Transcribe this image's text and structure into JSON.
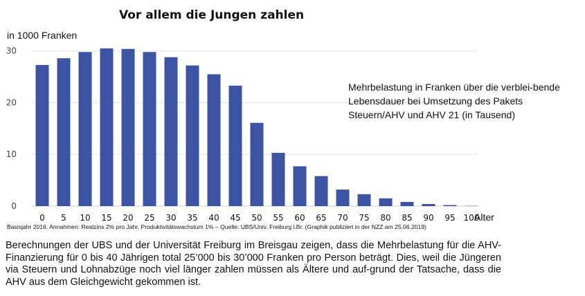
{
  "chart_data": {
    "type": "bar",
    "title": "Vor allem die Jungen zahlen",
    "ylabel": "in 1000 Franken",
    "xlabel": "Alter",
    "categories": [
      "0",
      "5",
      "10",
      "15",
      "20",
      "25",
      "30",
      "35",
      "40",
      "45",
      "50",
      "55",
      "60",
      "65",
      "70",
      "75",
      "80",
      "85",
      "90",
      "95",
      "100"
    ],
    "values": [
      27.3,
      28.6,
      29.8,
      30.5,
      30.4,
      29.8,
      28.8,
      27.2,
      25.5,
      23.3,
      16.1,
      10.3,
      7.7,
      5.8,
      3.2,
      2.3,
      1.5,
      0.8,
      0.4,
      0.2,
      0.05
    ],
    "ylim": [
      0,
      30.5
    ],
    "yticks": [
      "0",
      "10",
      "20",
      "30"
    ],
    "grid": true,
    "annotation": "Mehrbelastung in Franken über die verblei-bende Lebensdauer bei Umsetzung des Pakets Steuern/AHV und AHV 21 (in Tausend)",
    "colors": {
      "bar": "#3d53a4",
      "grid": "#e3e3e3",
      "axis": "#cccccc"
    }
  },
  "source": "Basisjahr 2016. Annahmen: Realzins 2% pro Jahr, Produktivitätswachstum 1% – Quelle: UBS/Univ. Freiburg i.Br. (Graphik publiziert in der NZZ am 25.06.2019)",
  "body_text": "Berechnungen der UBS und der Universität Freiburg im Breisgau zeigen, dass die Mehrbelastung für die AHV-Finanzierung für 0 bis 40 Jährigen total 25’000 bis 30’000 Franken pro Person beträgt. Dies, weil die Jüngeren via Steuern und Lohnabzüge noch viel länger zahlen müssen als Ältere und auf-grund der Tatsache, dass die AHV aus dem Gleichgewicht gekommen ist."
}
